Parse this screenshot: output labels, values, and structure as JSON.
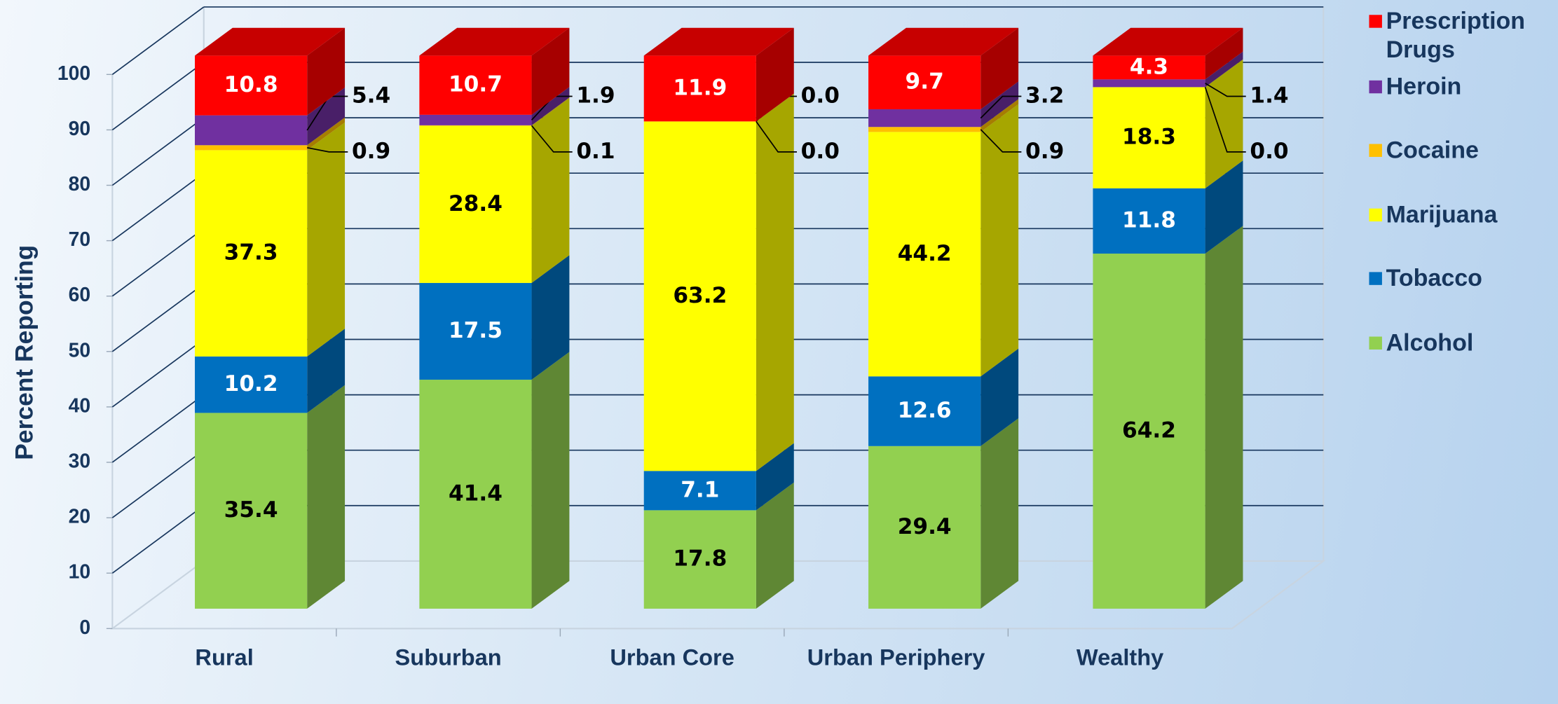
{
  "chart_data": {
    "type": "stacked-bar-3d",
    "y_label": "Percent Reporting",
    "categories": [
      "Rural",
      "Suburban",
      "Urban Core",
      "Urban Periphery",
      "Wealthy"
    ],
    "series": [
      {
        "name": "Alcohol",
        "color": "#92d050",
        "values": [
          35.4,
          41.4,
          17.8,
          29.4,
          64.2
        ],
        "value_labels": [
          "35.4",
          "41.4",
          "17.8",
          "29.4",
          "64.2"
        ]
      },
      {
        "name": "Tobacco",
        "color": "#0070c0",
        "values": [
          10.2,
          17.5,
          7.1,
          12.6,
          11.8
        ],
        "value_labels": [
          "10.2",
          "17.5",
          "7.1",
          "12.6",
          "11.8"
        ]
      },
      {
        "name": "Marijuana",
        "color": "#ffff00",
        "values": [
          37.3,
          28.4,
          63.2,
          44.2,
          18.3
        ],
        "value_labels": [
          "37.3",
          "28.4",
          "63.2",
          "44.2",
          "18.3"
        ]
      },
      {
        "name": "Cocaine",
        "color": "#ffc000",
        "values": [
          0.9,
          0.1,
          0,
          0.9,
          0
        ],
        "value_labels": [
          "0.9",
          "0.1",
          "0.0",
          "0.9",
          "0.0"
        ]
      },
      {
        "name": "Heroin",
        "color": "#7030a0",
        "values": [
          5.4,
          1.9,
          0,
          3.2,
          1.4
        ],
        "value_labels": [
          "5.4",
          "1.9",
          "0.0",
          "3.2",
          "1.4"
        ]
      },
      {
        "name": "Prescription Drugs",
        "color": "#ff0000",
        "values": [
          10.8,
          10.7,
          11.9,
          9.7,
          4.3
        ],
        "value_labels": [
          "10.8",
          "10.7",
          "11.9",
          "9.7",
          "4.3"
        ]
      }
    ],
    "ylim": [
      0,
      100
    ],
    "yticks": [
      0,
      10,
      20,
      30,
      40,
      50,
      60,
      70,
      80,
      90,
      100
    ],
    "grid": true,
    "legend": "right"
  }
}
